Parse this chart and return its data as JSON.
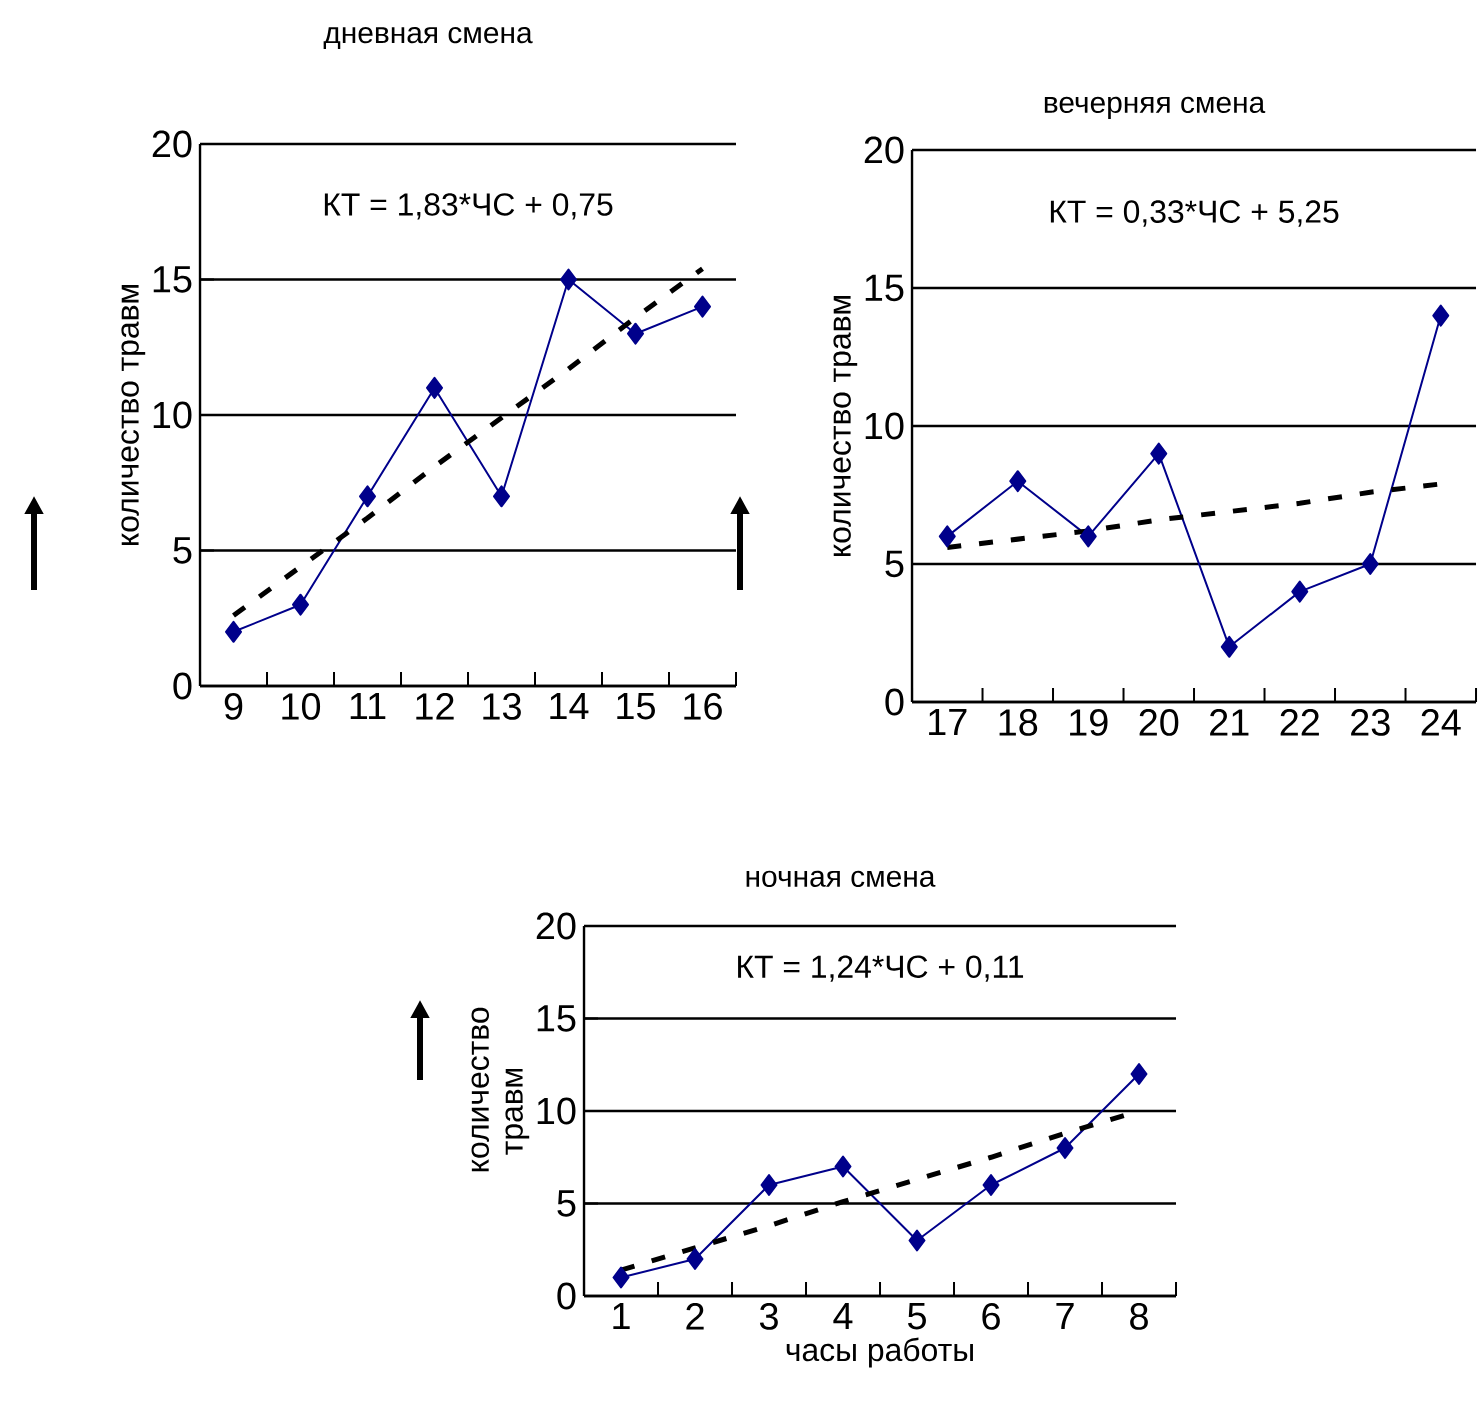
{
  "chart_data": [
    {
      "type": "line",
      "title": "дневная смена",
      "ylabel": "количество травм",
      "annotations": [
        "КТ  = 1,83*ЧС + 0,75"
      ],
      "categories": [
        "9",
        "10",
        "11",
        "12",
        "13",
        "14",
        "15",
        "16"
      ],
      "series": [
        {
          "color": "#00008b",
          "marker": "diamond",
          "line_style": "solid",
          "values": [
            2,
            3,
            7,
            11,
            7,
            15,
            13,
            14
          ]
        },
        {
          "type": "line",
          "color": "#000000",
          "marker": "none",
          "line_style": "dashed",
          "values": [
            2.6,
            4.4,
            6.2,
            8.1,
            9.9,
            11.7,
            13.6,
            15.4
          ]
        }
      ],
      "ylim": [
        0,
        20
      ],
      "yticks": [
        0,
        5,
        10,
        15,
        20
      ],
      "grid": "y"
    },
    {
      "type": "line",
      "title": "вечерняя смена",
      "ylabel": "количество травм",
      "annotations": [
        "КТ = 0,33*ЧС + 5,25"
      ],
      "categories": [
        "17",
        "18",
        "19",
        "20",
        "21",
        "22",
        "23",
        "24"
      ],
      "series": [
        {
          "color": "#00008b",
          "marker": "diamond",
          "line_style": "solid",
          "values": [
            6,
            8,
            6,
            9,
            2,
            4,
            5,
            14
          ]
        },
        {
          "type": "line",
          "color": "#000000",
          "marker": "none",
          "line_style": "dashed",
          "values": [
            5.6,
            5.9,
            6.2,
            6.6,
            6.9,
            7.2,
            7.6,
            7.9
          ]
        }
      ],
      "ylim": [
        0,
        20
      ],
      "yticks": [
        0,
        5,
        10,
        15,
        20
      ],
      "grid": "y"
    },
    {
      "type": "line",
      "title": "ночная смена",
      "ylabel": "количество травм",
      "xlabel": "часы работы",
      "annotations": [
        "КТ = 1,24*ЧС + 0,11"
      ],
      "categories": [
        "1",
        "2",
        "3",
        "4",
        "5",
        "6",
        "7",
        "8"
      ],
      "series": [
        {
          "color": "#00008b",
          "marker": "diamond",
          "line_style": "solid",
          "values": [
            1,
            2,
            6,
            7,
            3,
            6,
            8,
            12
          ]
        },
        {
          "type": "line",
          "color": "#000000",
          "marker": "none",
          "line_style": "dashed",
          "values": [
            1.4,
            2.6,
            3.8,
            5.1,
            6.3,
            7.5,
            8.8,
            10.0
          ]
        }
      ],
      "ylim": [
        0,
        20
      ],
      "yticks": [
        0,
        5,
        10,
        15,
        20
      ],
      "grid": "y"
    }
  ]
}
